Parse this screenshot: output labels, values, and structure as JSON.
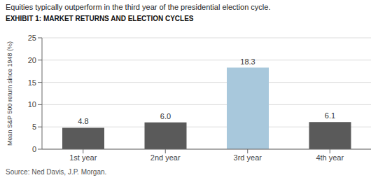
{
  "chart_data": {
    "type": "bar",
    "title": "Equities typically outperform in the third year of the presidential election cycle.",
    "subtitle": "EXHIBIT 1: MARKET RETURNS AND ELECTION CYCLES",
    "source": "Source: Ned Davis, J.P. Morgan.",
    "categories": [
      "1st year",
      "2nd year",
      "3rd year",
      "4th year"
    ],
    "values": [
      4.8,
      6.0,
      18.3,
      6.1
    ],
    "value_labels": [
      "4.8",
      "6.0",
      "18.3",
      "6.1"
    ],
    "data_labels": true,
    "colors": [
      "#5a5a5a",
      "#5a5a5a",
      "#a8c8dc",
      "#5a5a5a"
    ],
    "ylabel": "Mean S&P 500 return since 1948 (%)",
    "ylim": [
      0,
      25
    ],
    "yticks": [
      0,
      5,
      10,
      15,
      20,
      25
    ],
    "grid": true
  }
}
